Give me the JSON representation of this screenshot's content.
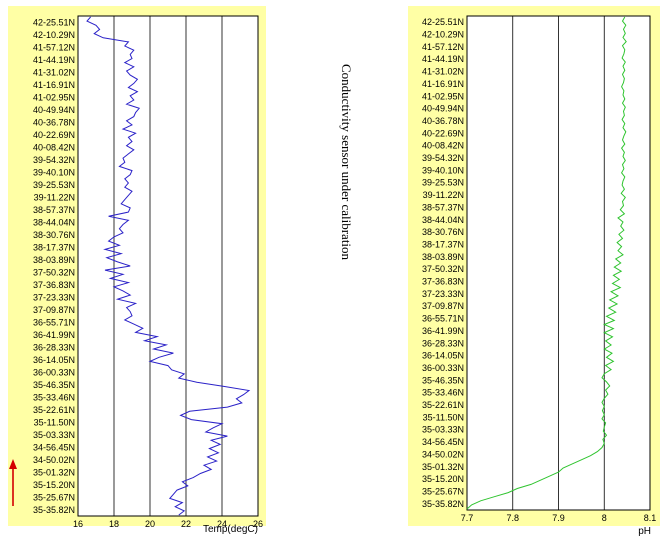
{
  "note": "Conductivity sensor under calibration",
  "colors": {
    "panel_bg": "#ffffa5",
    "temp_line": "#2b22c8",
    "ph_line": "#2fc42f",
    "arrow": "#d40000",
    "grid": "#000000"
  },
  "chart_data": [
    {
      "type": "line",
      "xlabel": "Temp(degC)",
      "xlim": [
        16,
        26
      ],
      "x_ticks": [
        "16",
        "18",
        "20",
        "22",
        "24",
        "26"
      ],
      "grid": "vertical",
      "y_tick_labels": [
        "42-25.51N",
        "42-10.29N",
        "41-57.12N",
        "41-44.19N",
        "41-31.02N",
        "41-16.91N",
        "41-02.95N",
        "40-49.94N",
        "40-36.78N",
        "40-22.69N",
        "40-08.42N",
        "39-54.32N",
        "39-40.10N",
        "39-25.53N",
        "39-11.22N",
        "38-57.37N",
        "38-44.04N",
        "38-30.76N",
        "38-17.37N",
        "38-03.89N",
        "37-50.32N",
        "37-36.83N",
        "37-23.33N",
        "37-09.87N",
        "36-55.71N",
        "36-41.99N",
        "36-28.33N",
        "36-14.05N",
        "36-00.33N",
        "35-46.35N",
        "35-33.46N",
        "35-22.61N",
        "35-11.50N",
        "35-03.33N",
        "34-56.45N",
        "34-50.02N",
        "35-01.32N",
        "35-15.20N",
        "35-25.67N",
        "35-35.82N"
      ],
      "series": [
        {
          "values": [
            16.7,
            16.5,
            17.0,
            17.2,
            16.9,
            17.4,
            18.8,
            18.6,
            19.1,
            18.9,
            19.0,
            18.6,
            19.1,
            18.7,
            18.9,
            19.3,
            19.1,
            18.8,
            19.3,
            18.9,
            19.1,
            18.7,
            19.4,
            19.2,
            19.1,
            18.7,
            19.0,
            18.5,
            19.2,
            18.8,
            19.0,
            18.7,
            19.1,
            18.8,
            18.5,
            18.6,
            18.3,
            19.0,
            18.9,
            18.6,
            18.8,
            18.6,
            19.0,
            18.8,
            18.6,
            18.4,
            18.9,
            18.8,
            17.7,
            18.8,
            18.5,
            18.3,
            18.5,
            18.0,
            17.7,
            18.3,
            17.5,
            18.4,
            17.6,
            18.2,
            18.9,
            17.5,
            18.5,
            17.8,
            18.8,
            18.0,
            18.5,
            18.9,
            18.2,
            19.2,
            18.7,
            18.9,
            19.0,
            18.6,
            19.1,
            19.6,
            19.2,
            20.4,
            19.7,
            20.9,
            20.2,
            21.3,
            20.5,
            20.0,
            21.0,
            21.2,
            21.9,
            21.6,
            22.6,
            24.1,
            25.5,
            25.2,
            24.8,
            25.1,
            24.3,
            22.2,
            21.7,
            22.3,
            24.0,
            23.5,
            23.1,
            24.3,
            23.4,
            23.9,
            23.3,
            23.8,
            23.2,
            23.7,
            23.0,
            23.4,
            22.8,
            22.4,
            21.8,
            22.1,
            21.5,
            21.3,
            21.1,
            21.8,
            21.4,
            21.9,
            21.6
          ]
        }
      ]
    },
    {
      "type": "line",
      "xlabel": "pH",
      "xlim": [
        7.7,
        8.1
      ],
      "x_ticks": [
        "7.7",
        "7.8",
        "7.9",
        "8",
        "8.1"
      ],
      "grid": "vertical",
      "y_tick_labels": [
        "42-25.51N",
        "42-10.29N",
        "41-57.12N",
        "41-44.19N",
        "41-31.02N",
        "41-16.91N",
        "41-02.95N",
        "40-49.94N",
        "40-36.78N",
        "40-22.69N",
        "40-08.42N",
        "39-54.32N",
        "39-40.10N",
        "39-25.53N",
        "39-11.22N",
        "38-57.37N",
        "38-44.04N",
        "38-30.76N",
        "38-17.37N",
        "38-03.89N",
        "37-50.32N",
        "37-36.83N",
        "37-23.33N",
        "37-09.87N",
        "36-55.71N",
        "36-41.99N",
        "36-28.33N",
        "36-14.05N",
        "36-00.33N",
        "35-46.35N",
        "35-33.46N",
        "35-22.61N",
        "35-11.50N",
        "35-03.33N",
        "34-56.45N",
        "34-50.02N",
        "35-01.32N",
        "35-15.20N",
        "35-25.67N",
        "35-35.82N"
      ],
      "series": [
        {
          "values": [
            8.045,
            8.04,
            8.047,
            8.042,
            8.046,
            8.041,
            8.048,
            8.04,
            8.045,
            8.043,
            8.039,
            8.046,
            8.041,
            8.045,
            8.04,
            8.044,
            8.042,
            8.038,
            8.043,
            8.041,
            8.045,
            8.04,
            8.046,
            8.042,
            8.044,
            8.039,
            8.045,
            8.041,
            8.047,
            8.043,
            8.04,
            8.045,
            8.038,
            8.044,
            8.041,
            8.046,
            8.04,
            8.043,
            8.038,
            8.045,
            8.041,
            8.039,
            8.044,
            8.037,
            8.046,
            8.04,
            8.042,
            8.035,
            8.044,
            8.03,
            8.041,
            8.036,
            8.043,
            8.032,
            8.04,
            8.028,
            8.038,
            8.03,
            8.041,
            8.025,
            8.036,
            8.022,
            8.037,
            8.02,
            8.033,
            8.018,
            8.035,
            8.015,
            8.03,
            8.012,
            8.028,
            8.01,
            8.025,
            8.005,
            8.022,
            8.0,
            8.02,
            8.0,
            8.018,
            8.003,
            8.015,
            8.0,
            8.017,
            8.005,
            8.02,
            8.003,
            8.015,
            8.0,
            7.995,
            8.005,
            8.012,
            8.003,
            8.008,
            8.0,
            7.995,
            8.0,
            7.996,
            8.0,
            7.995,
            8.003,
            8.0,
            7.998,
            8.005,
            7.997,
            8.0,
            7.995,
            7.985,
            7.97,
            7.95,
            7.93,
            7.91,
            7.9,
            7.88,
            7.86,
            7.84,
            7.81,
            7.79,
            7.76,
            7.73,
            7.71,
            7.7
          ]
        }
      ]
    }
  ]
}
